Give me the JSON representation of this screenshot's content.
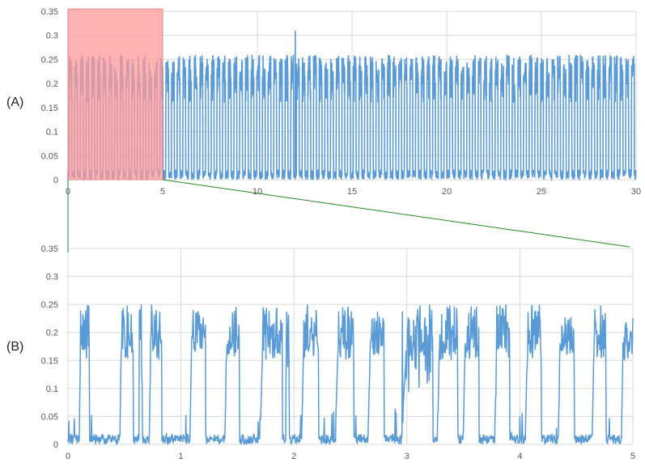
{
  "colors": {
    "series": "#5b9bd5",
    "highlight_fill": "#ff9999",
    "connector": "#228b22",
    "gridline": "#d9d9d9",
    "tick_text": "#595959"
  },
  "chart_data": [
    {
      "type": "line",
      "panel_label": "(A)",
      "title": "",
      "xlabel": "",
      "ylabel": "",
      "xlim": [
        0,
        30
      ],
      "ylim": [
        0,
        0.35
      ],
      "x_ticks": [
        "0",
        "5",
        "10",
        "15",
        "20",
        "25",
        "30"
      ],
      "y_ticks": [
        "0",
        "0.05",
        "0.1",
        "0.15",
        "0.2",
        "0.25",
        "0.3",
        "0.35"
      ],
      "grid": true,
      "highlight_region": {
        "x_start": 0,
        "x_end": 5
      },
      "series": [
        {
          "pattern": "periodic square-like pulses",
          "baseline_level": 0.015,
          "pulse_level_range": [
            0.2,
            0.26
          ],
          "pulse_period": 0.3,
          "outlier_peak": {
            "x": 12,
            "y": 0.31
          }
        }
      ]
    },
    {
      "type": "line",
      "panel_label": "(B)",
      "title": "",
      "xlabel": "",
      "ylabel": "",
      "xlim": [
        0,
        5
      ],
      "ylim": [
        0,
        0.35
      ],
      "x_ticks": [
        "0",
        "1",
        "2",
        "3",
        "4",
        "5"
      ],
      "y_ticks": [
        "0",
        "0.05",
        "0.1",
        "0.15",
        "0.2",
        "0.25",
        "0.3",
        "0.35"
      ],
      "grid": true,
      "series": [
        {
          "baseline_level": 0.01,
          "plateau_level": 0.16,
          "plateau_max": 0.25,
          "pulses": [
            {
              "start": 0.1,
              "end": 0.19
            },
            {
              "start": 0.46,
              "end": 0.58
            },
            {
              "start": 0.63,
              "end": 0.66
            },
            {
              "start": 0.72,
              "end": 0.83
            },
            {
              "start": 1.08,
              "end": 1.22
            },
            {
              "start": 1.39,
              "end": 1.52
            },
            {
              "start": 1.7,
              "end": 1.9
            },
            {
              "start": 1.93,
              "end": 1.96
            },
            {
              "start": 2.07,
              "end": 2.22
            },
            {
              "start": 2.37,
              "end": 2.53
            },
            {
              "start": 2.66,
              "end": 2.8
            },
            {
              "start": 2.96,
              "end": 3.23
            },
            {
              "start": 3.27,
              "end": 3.45
            },
            {
              "start": 3.5,
              "end": 3.64
            },
            {
              "start": 3.78,
              "end": 3.91
            },
            {
              "start": 4.05,
              "end": 4.19
            },
            {
              "start": 4.34,
              "end": 4.48
            },
            {
              "start": 4.64,
              "end": 4.76
            },
            {
              "start": 4.9,
              "end": 5.0
            }
          ]
        }
      ]
    }
  ]
}
